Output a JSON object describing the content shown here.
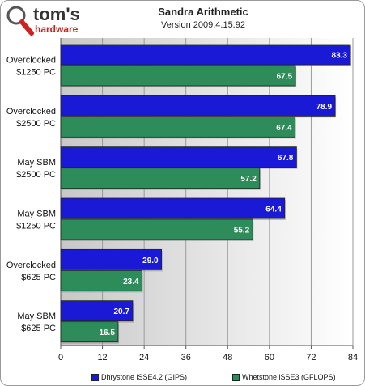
{
  "header": {
    "logo_main": "tom's",
    "logo_sub": "hardware",
    "title": "Sandra Arithmetic",
    "subtitle": "Version 2009.4.15.92"
  },
  "colors": {
    "series1": "#1a1ad6",
    "series2": "#2e8b5a",
    "logo_red": "#cc2222"
  },
  "chart_data": {
    "type": "bar",
    "orientation": "horizontal",
    "title": "Sandra Arithmetic",
    "subtitle": "Version 2009.4.15.92",
    "categories": [
      [
        "Overclocked",
        "$1250 PC"
      ],
      [
        "Overclocked",
        "$2500 PC"
      ],
      [
        "May SBM",
        "$2500 PC"
      ],
      [
        "May SBM",
        "$1250 PC"
      ],
      [
        "Overclocked",
        "$625 PC"
      ],
      [
        "May SBM",
        "$625 PC"
      ]
    ],
    "series": [
      {
        "name": "Dhrystone iSSE4.2 (GIPS)",
        "values": [
          83.3,
          78.9,
          67.8,
          64.4,
          29.0,
          20.7
        ],
        "labels": [
          "83.3",
          "78.9",
          "67.8",
          "64.4",
          "29.0",
          "20.7"
        ]
      },
      {
        "name": "Whetstone iSSE3 (GFLOPS)",
        "values": [
          67.5,
          67.4,
          57.2,
          55.2,
          23.4,
          16.5
        ],
        "labels": [
          "67.5",
          "67.4",
          "57.2",
          "55.2",
          "23.4",
          "16.5"
        ]
      }
    ],
    "xlim": [
      0,
      84
    ],
    "xticks": [
      0,
      12,
      24,
      36,
      48,
      60,
      72,
      84
    ],
    "xtick_labels": [
      "0",
      "12",
      "24",
      "36",
      "48",
      "60",
      "72",
      "84"
    ],
    "grid": true,
    "legend_position": "bottom"
  }
}
